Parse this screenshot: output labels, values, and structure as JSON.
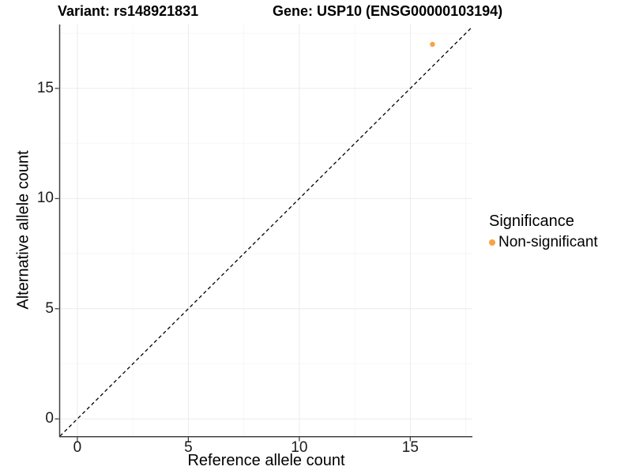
{
  "chart_data": {
    "type": "scatter",
    "variant_title": "Variant: rs148921831",
    "gene_title": "Gene: USP10 (ENSG00000103194)",
    "xlabel": "Reference allele count",
    "ylabel": "Alternative allele count",
    "xlim": [
      -0.78,
      17.8
    ],
    "ylim": [
      -0.78,
      17.9
    ],
    "x_ticks": [
      0,
      5,
      10,
      15
    ],
    "y_ticks": [
      0,
      5,
      10,
      15
    ],
    "x_minor_ticks": [
      2.5,
      7.5,
      12.5,
      17.5
    ],
    "y_minor_ticks": [
      2.5,
      7.5,
      12.5,
      17.5
    ],
    "grid": true,
    "points": [
      {
        "x": 16,
        "y": 17,
        "series": "Non-significant"
      }
    ],
    "reference_line": {
      "slope": 1,
      "intercept": 0,
      "style": "dashed",
      "color": "#000000"
    },
    "legend": {
      "title": "Significance",
      "position": "right",
      "items": [
        {
          "label": "Non-significant",
          "color": "#F9A242"
        }
      ]
    },
    "colors": {
      "point": "#F9A242",
      "grid_major": "#EBEBEB",
      "grid_minor": "#F5F5F5",
      "axis_line": "#404040",
      "tick_mark": "#333333",
      "background": "#FFFFFF"
    }
  }
}
